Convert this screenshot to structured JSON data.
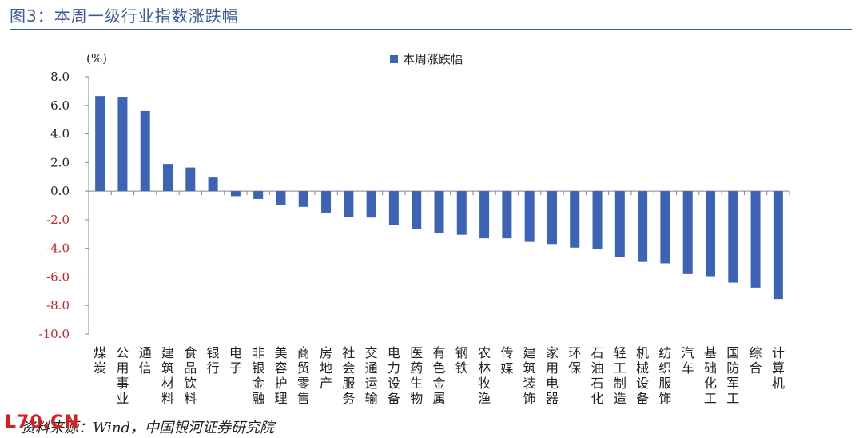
{
  "figure": {
    "title": "图3：本周一级行业指数涨跌幅",
    "unit_label": "(%)",
    "source_text": "资料来源：Wind，中国银河证券研究院",
    "logo_text": "L70.CN"
  },
  "colors": {
    "bar": "#3c63b4",
    "title": "#3a5a99",
    "negative_tick": "#d81e1e",
    "positive_tick": "#222222"
  },
  "chart_data": {
    "type": "bar",
    "title": "图3：本周一级行业指数涨跌幅",
    "ylabel": "(%)",
    "xlabel": "",
    "legend": "top-center",
    "grid": false,
    "ylim": [
      -10,
      8
    ],
    "yticks": [
      8.0,
      6.0,
      4.0,
      2.0,
      0.0,
      -2.0,
      -4.0,
      -6.0,
      -8.0,
      -10.0
    ],
    "ytick_labels": [
      "8.0",
      "6.0",
      "4.0",
      "2.0",
      "0.0",
      "-2.0",
      "-4.0",
      "-6.0",
      "-8.0",
      "-10.0"
    ],
    "categories": [
      "煤炭",
      "公用事业",
      "通信",
      "建筑材料",
      "食品饮料",
      "银行",
      "电子",
      "非银金融",
      "美容护理",
      "商贸零售",
      "房地产",
      "社会服务",
      "交通运输",
      "电力设备",
      "医药生物",
      "有色金属",
      "钢铁",
      "农林牧渔",
      "传媒",
      "建筑装饰",
      "家用电器",
      "环保",
      "石油石化",
      "轻工制造",
      "机械设备",
      "纺织服饰",
      "汽车",
      "基础化工",
      "国防军工",
      "综合",
      "计算机"
    ],
    "series": [
      {
        "name": "本周涨跌幅",
        "values": [
          6.65,
          6.6,
          5.6,
          1.9,
          1.65,
          0.95,
          -0.35,
          -0.55,
          -1.0,
          -1.1,
          -1.5,
          -1.8,
          -1.85,
          -2.35,
          -2.65,
          -2.9,
          -3.05,
          -3.3,
          -3.3,
          -3.55,
          -3.7,
          -3.95,
          -4.05,
          -4.6,
          -4.95,
          -5.05,
          -5.8,
          -5.95,
          -6.4,
          -6.75,
          -7.55
        ]
      }
    ]
  }
}
